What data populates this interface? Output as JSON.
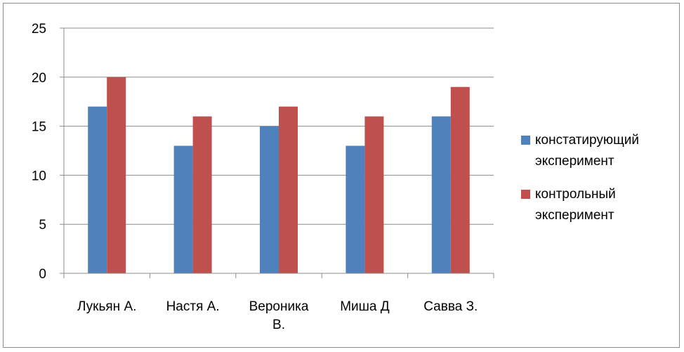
{
  "chart_data": {
    "type": "bar",
    "categories": [
      [
        "Лукьян А."
      ],
      [
        "Настя А."
      ],
      [
        "Вероника",
        "В."
      ],
      [
        "Миша Д"
      ],
      [
        "Савва З."
      ]
    ],
    "series": [
      {
        "name": [
          "констатирующий",
          "эксперимент"
        ],
        "color": "#4f81bd",
        "values": [
          17,
          13,
          15,
          13,
          16
        ]
      },
      {
        "name": [
          "контрольный",
          "эксперимент"
        ],
        "color": "#c0504d",
        "values": [
          20,
          16,
          17,
          16,
          19
        ]
      }
    ],
    "ylim": [
      0,
      25
    ],
    "yticks": [
      0,
      5,
      10,
      15,
      20,
      25
    ],
    "grid": true,
    "legend_position": "right"
  }
}
